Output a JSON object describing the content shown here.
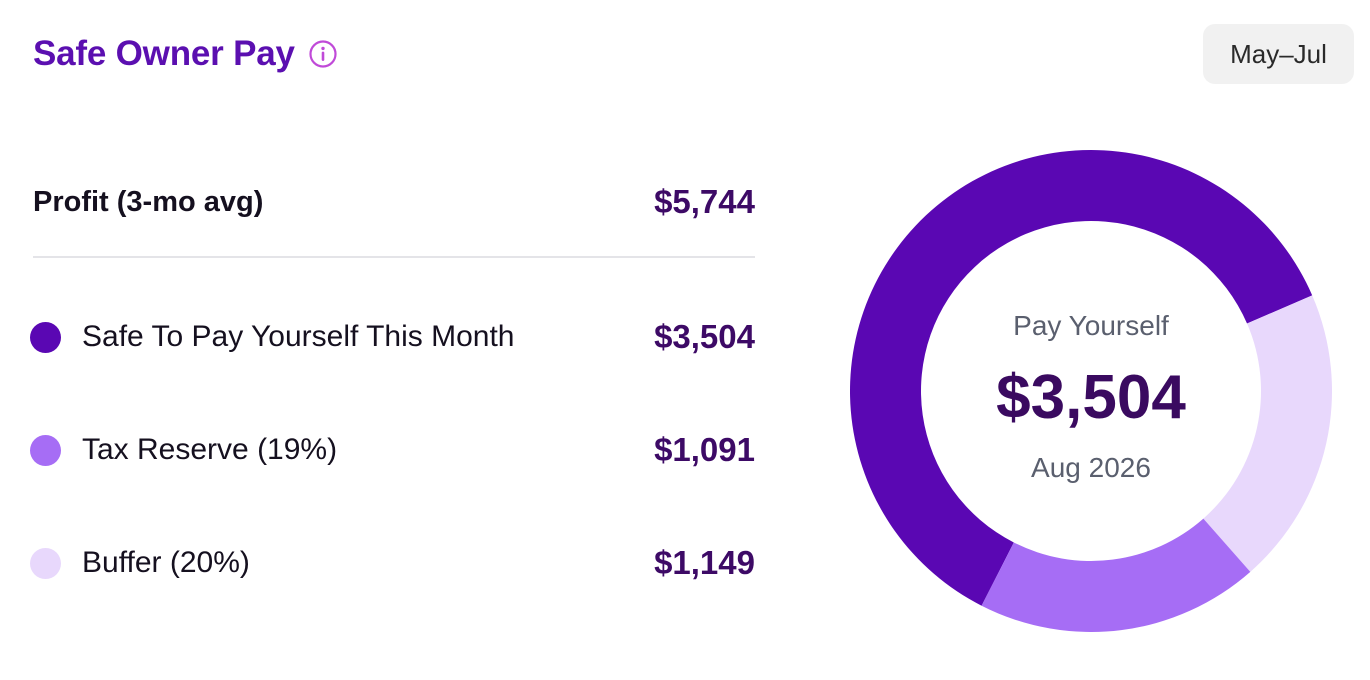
{
  "header": {
    "title": "Safe Owner Pay",
    "info_icon": "info-icon",
    "range_button": "May–Jul"
  },
  "profit": {
    "label": "Profit (3-mo avg)",
    "amount": "$5,744"
  },
  "breakdown": [
    {
      "label": "Safe To Pay Yourself This Month",
      "amount": "$3,504",
      "color": "#5a07b3"
    },
    {
      "label": "Tax Reserve (19%)",
      "amount": "$1,091",
      "color": "#a66df5"
    },
    {
      "label": "Buffer (20%)",
      "amount": "$1,149",
      "color": "#e8d8fc"
    }
  ],
  "chart_data": {
    "type": "pie",
    "donut": true,
    "slices": [
      {
        "label": "Safe To Pay Yourself This Month",
        "value": 3504,
        "color": "#5a07b3"
      },
      {
        "label": "Buffer (20%)",
        "value": 1149,
        "color": "#e8d8fc"
      },
      {
        "label": "Tax Reserve (19%)",
        "value": 1091,
        "color": "#a66df5"
      }
    ],
    "center": {
      "label": "Pay Yourself",
      "value": "$3,504",
      "date": "Aug 2026"
    }
  }
}
